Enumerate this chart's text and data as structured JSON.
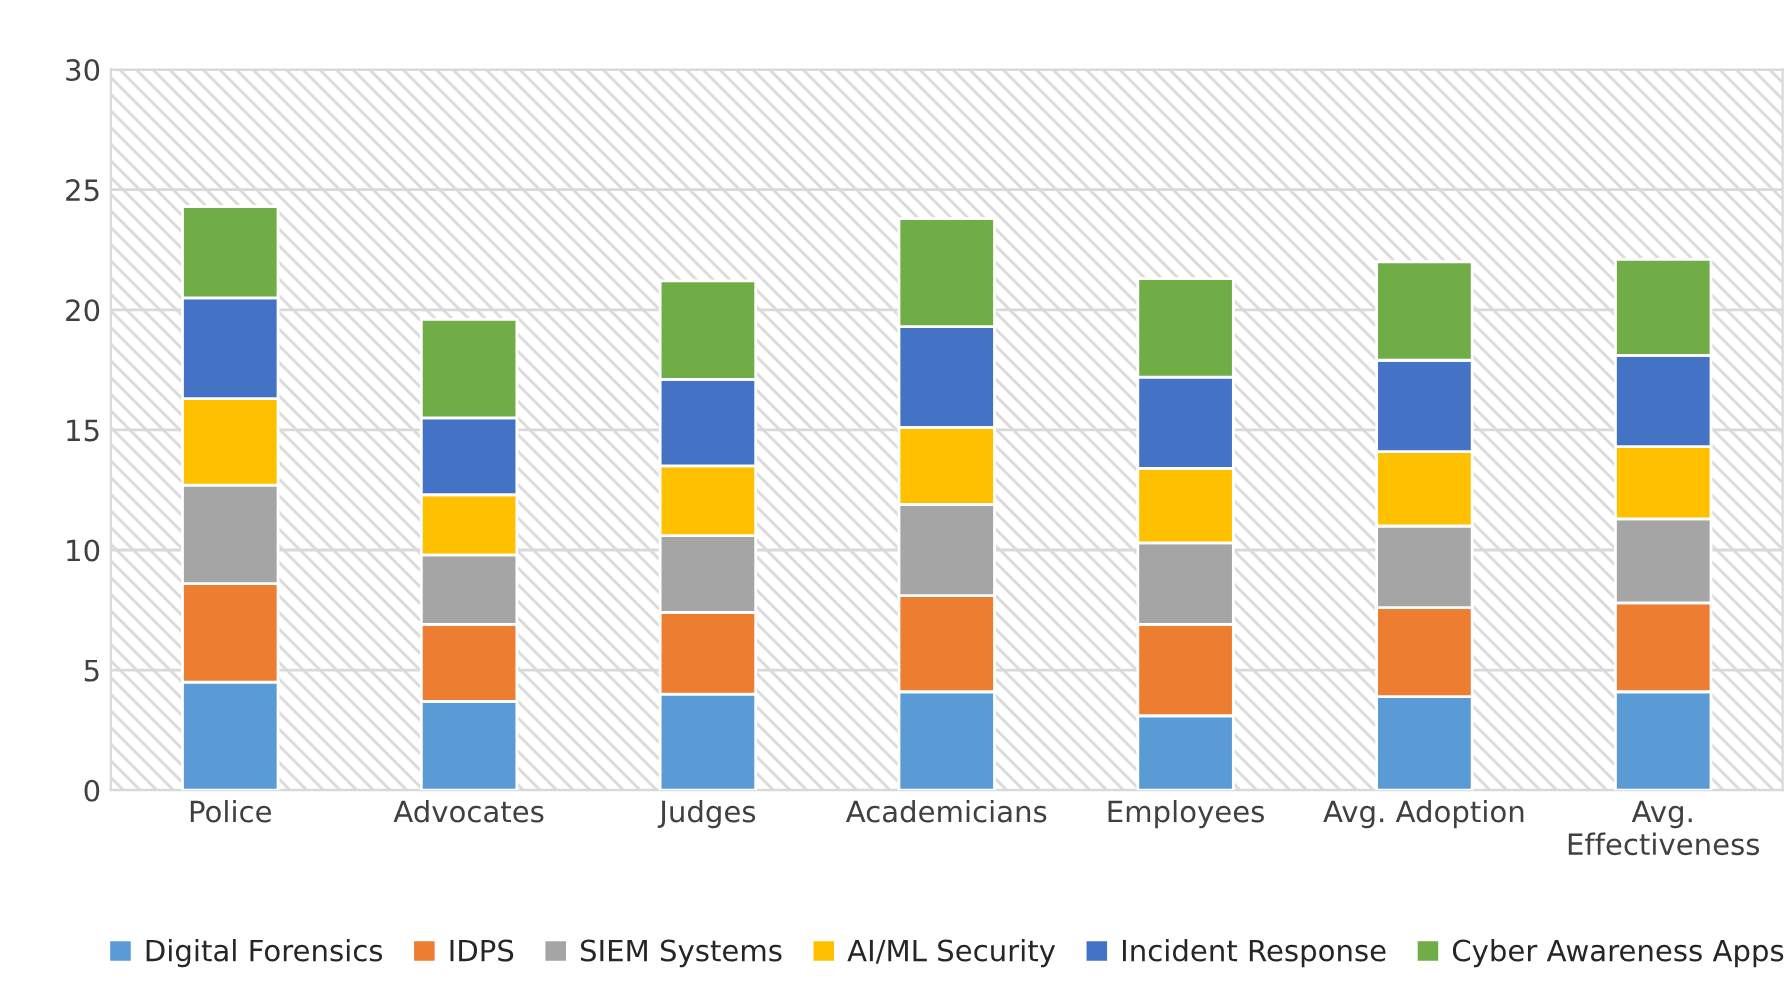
{
  "chart_data": {
    "type": "bar",
    "stacked": true,
    "categories": [
      "Police",
      "Advocates",
      "Judges",
      "Academicians",
      "Employees",
      "Avg. Adoption",
      "Avg.\nEffectiveness"
    ],
    "series": [
      {
        "name": "Digital Forensics",
        "color": "#5b9bd5",
        "values": [
          4.5,
          3.7,
          4.0,
          4.1,
          3.1,
          3.9,
          4.1
        ]
      },
      {
        "name": "IDPS",
        "color": "#ed7d31",
        "values": [
          4.1,
          3.2,
          3.4,
          4.0,
          3.8,
          3.7,
          3.7
        ]
      },
      {
        "name": "SIEM Systems",
        "color": "#a5a5a5",
        "values": [
          4.1,
          2.9,
          3.2,
          3.8,
          3.4,
          3.4,
          3.5
        ]
      },
      {
        "name": "AI/ML Security",
        "color": "#ffc000",
        "values": [
          3.6,
          2.5,
          2.9,
          3.2,
          3.1,
          3.1,
          3.0
        ]
      },
      {
        "name": "Incident Response",
        "color": "#4472c4",
        "values": [
          4.2,
          3.2,
          3.6,
          4.2,
          3.8,
          3.8,
          3.8
        ]
      },
      {
        "name": "Cyber Awareness Apps",
        "color": "#70ad47",
        "values": [
          3.8,
          4.1,
          4.1,
          4.5,
          4.1,
          4.1,
          4.0
        ]
      }
    ],
    "ylim": [
      0,
      30
    ],
    "yticks": [
      0,
      5,
      10,
      15,
      20,
      25,
      30
    ],
    "grid": "y",
    "legend": "bottom"
  }
}
